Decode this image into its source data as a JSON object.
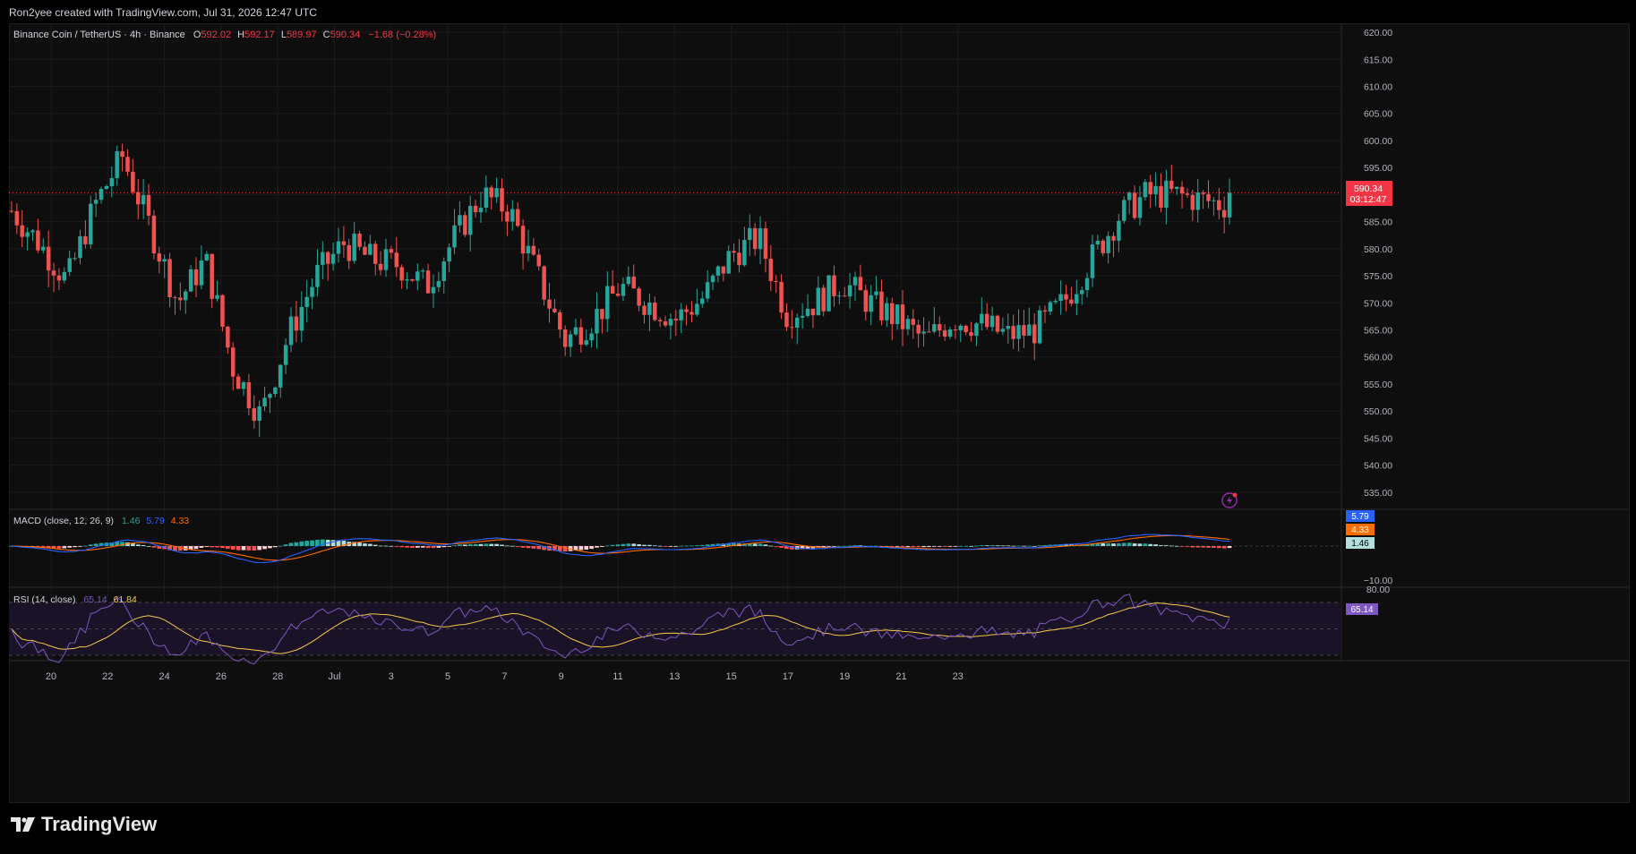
{
  "header": {
    "credit": "Ron2yee created with TradingView.com, Jul 31, 2026 12:47 UTC"
  },
  "symbol": {
    "title": "Binance Coin / TetherUS · 4h · Binance",
    "o_label": "O",
    "o": "592.02",
    "h_label": "H",
    "h": "592.17",
    "l_label": "L",
    "l": "589.97",
    "c_label": "C",
    "c": "590.34",
    "change": "−1.68 (−0.28%)"
  },
  "price_badge": {
    "price": "590.34",
    "countdown": "03:12:47"
  },
  "macd": {
    "label": "MACD (close, 12, 26, 9)",
    "hist": "1.46",
    "macd": "5.79",
    "signal": "4.33",
    "axis_labels": [
      "−10.00"
    ],
    "badges": [
      "5.79",
      "4.33",
      "1.46"
    ]
  },
  "rsi": {
    "label": "RSI (14, close)",
    "rsi": "65.14",
    "ma": "61.84",
    "axis_labels": [
      "80.00"
    ],
    "badge": "65.14"
  },
  "footer": {
    "brand": "TradingView"
  },
  "colors": {
    "up": "#26a69a",
    "down": "#ef5350",
    "macd": "#2962ff",
    "signal": "#ff6d00",
    "rsi": "#7e57c2",
    "rsi_ma": "#f7c948",
    "badge": "#f23645"
  },
  "icons": {
    "alert": "lightning-alert-icon",
    "logo": "tradingview-logo-icon"
  },
  "chart_data": {
    "type": "candlestick",
    "interval": "4h",
    "price_axis": {
      "ticks": [
        "620.00",
        "615.00",
        "610.00",
        "605.00",
        "600.00",
        "595.00",
        "590.00",
        "585.00",
        "580.00",
        "575.00",
        "570.00",
        "565.00",
        "560.00",
        "555.00",
        "550.00",
        "545.00",
        "540.00",
        "535.00"
      ],
      "range": [
        532,
        621
      ]
    },
    "x_axis": {
      "ticks": [
        "20",
        "22",
        "24",
        "26",
        "28",
        "Jul",
        "3",
        "5",
        "7",
        "9",
        "11",
        "13",
        "15",
        "17",
        "19",
        "21",
        "23"
      ]
    },
    "last_price": 590.34,
    "price_path": [
      [
        0,
        587
      ],
      [
        1,
        581
      ],
      [
        2,
        574
      ],
      [
        3,
        588
      ],
      [
        4,
        597
      ],
      [
        5,
        584
      ],
      [
        6,
        570
      ],
      [
        7,
        578
      ],
      [
        8,
        558
      ],
      [
        9,
        549
      ],
      [
        10,
        564
      ],
      [
        11,
        575
      ],
      [
        12,
        581
      ],
      [
        13,
        578
      ],
      [
        14,
        577
      ],
      [
        15,
        573
      ],
      [
        16,
        582
      ],
      [
        17,
        590
      ],
      [
        18,
        587
      ],
      [
        19,
        575
      ],
      [
        20,
        563
      ],
      [
        21,
        567
      ],
      [
        22,
        573
      ],
      [
        23,
        570
      ],
      [
        24,
        567
      ],
      [
        25,
        571
      ],
      [
        26,
        579
      ],
      [
        27,
        582
      ],
      [
        28,
        568
      ],
      [
        29,
        570
      ],
      [
        30,
        574
      ],
      [
        31,
        570
      ],
      [
        32,
        567
      ],
      [
        33,
        563
      ],
      [
        34,
        567
      ],
      [
        35,
        566
      ],
      [
        36,
        564
      ],
      [
        37,
        565
      ],
      [
        38,
        570
      ],
      [
        39,
        578
      ],
      [
        40,
        586
      ],
      [
        41,
        590
      ],
      [
        42,
        590
      ],
      [
        43,
        589
      ],
      [
        44,
        588
      ]
    ]
  }
}
